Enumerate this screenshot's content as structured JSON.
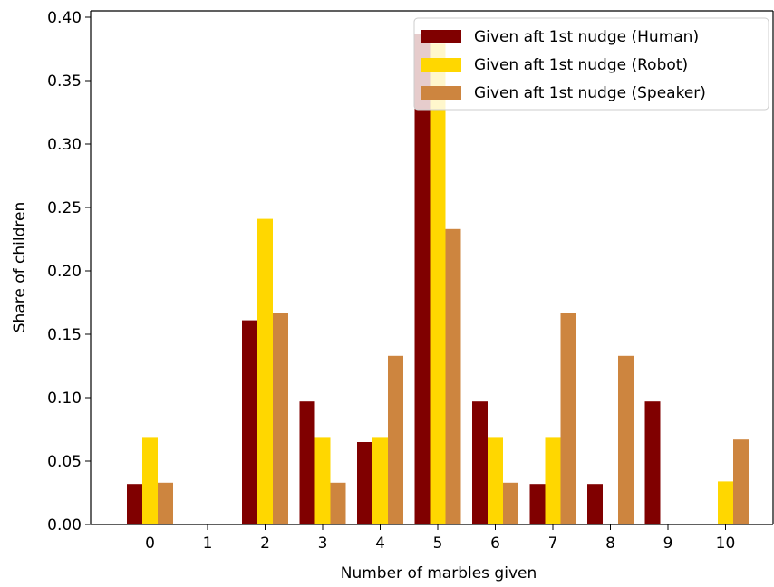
{
  "chart_data": {
    "type": "bar",
    "categories": [
      "0",
      "1",
      "2",
      "3",
      "4",
      "5",
      "6",
      "7",
      "8",
      "9",
      "10"
    ],
    "series": [
      {
        "name": "Given aft 1st nudge (Human)",
        "color": "#800000",
        "values": [
          0.032,
          0.0,
          0.161,
          0.097,
          0.065,
          0.387,
          0.097,
          0.032,
          0.032,
          0.097,
          0.0
        ]
      },
      {
        "name": "Given aft 1st nudge (Robot)",
        "color": "#FFD700",
        "values": [
          0.069,
          0.0,
          0.241,
          0.069,
          0.069,
          0.379,
          0.069,
          0.069,
          0.0,
          0.0,
          0.034
        ]
      },
      {
        "name": "Given aft 1st nudge (Speaker)",
        "color": "#CD853F",
        "values": [
          0.033,
          0.0,
          0.167,
          0.033,
          0.133,
          0.233,
          0.033,
          0.167,
          0.133,
          0.0,
          0.067
        ]
      }
    ],
    "yticks": [
      "0.00",
      "0.05",
      "0.10",
      "0.15",
      "0.20",
      "0.25",
      "0.30",
      "0.35",
      "0.40"
    ],
    "xlabel": "Number of marbles given",
    "ylabel": "Share of children",
    "ylim": [
      0,
      0.405
    ],
    "grid": false,
    "legend": "top-right"
  }
}
